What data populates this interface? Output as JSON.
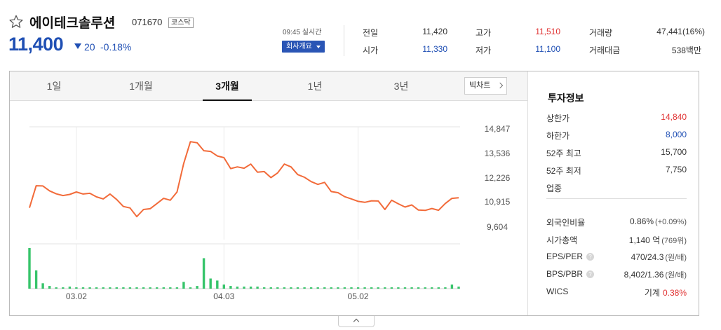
{
  "header": {
    "name": "에이테크솔루션",
    "code": "071670",
    "market": "코스닥",
    "price": "11,400",
    "change": "20",
    "change_pct": "-0.18%",
    "time": "09:45 실시간",
    "info_button": "회사개요"
  },
  "summary": {
    "prev_close": {
      "label": "전일",
      "value": "11,420"
    },
    "open": {
      "label": "시가",
      "value": "11,330"
    },
    "high": {
      "label": "고가",
      "value": "11,510"
    },
    "low": {
      "label": "저가",
      "value": "11,100"
    },
    "volume": {
      "label": "거래량",
      "value": "47,441(16%)"
    },
    "amount": {
      "label": "거래대금",
      "value": "538백만"
    }
  },
  "tabs": [
    "1일",
    "1개월",
    "3개월",
    "1년",
    "3년"
  ],
  "active_tab": "3개월",
  "big_chart": "빅차트",
  "chart_data": {
    "type": "line",
    "y_ticks": [
      "14,847",
      "13,536",
      "12,226",
      "10,915",
      "9,604"
    ],
    "x_ticks": [
      "03.02",
      "04.03",
      "05.02"
    ],
    "ylim": [
      9604,
      14847
    ],
    "series": [
      {
        "values": [
          10550,
          11720,
          11710,
          11450,
          11290,
          11200,
          11260,
          11390,
          11280,
          11320,
          11130,
          11020,
          11280,
          10990,
          10620,
          10540,
          10080,
          10460,
          10500,
          10770,
          11050,
          10950,
          11390,
          12900,
          14060,
          14000,
          13580,
          13540,
          13300,
          13210,
          12630,
          12720,
          12650,
          12870,
          12440,
          12470,
          12150,
          12400,
          12870,
          12720,
          12310,
          12170,
          11940,
          11790,
          11900,
          11410,
          11350,
          11140,
          11020,
          10890,
          10840,
          10920,
          10910,
          10460,
          10950,
          10760,
          10590,
          10700,
          10430,
          10410,
          10510,
          10420,
          10780,
          11050,
          11080
        ]
      }
    ],
    "volume": [
      60,
      27,
      8,
      4,
      2,
      2,
      3,
      2,
      2,
      2,
      2,
      2,
      2,
      2,
      2,
      2,
      2,
      2,
      2,
      2,
      2,
      2,
      2,
      10,
      2,
      4,
      45,
      15,
      12,
      6,
      4,
      3,
      3,
      3,
      3,
      2,
      2,
      2,
      2,
      2,
      2,
      2,
      2,
      2,
      2,
      2,
      2,
      2,
      2,
      2,
      2,
      2,
      2,
      2,
      2,
      2,
      2,
      2,
      2,
      2,
      2,
      2,
      2,
      6,
      3
    ]
  },
  "invest": {
    "title": "투자정보",
    "rows": [
      {
        "label": "상한가",
        "value": "14,840",
        "tone": "up"
      },
      {
        "label": "하한가",
        "value": "8,000",
        "tone": "down"
      },
      {
        "label": "52주 최고",
        "value": "15,700",
        "tone": "plain"
      },
      {
        "label": "52주 최저",
        "value": "7,750",
        "tone": "plain"
      },
      {
        "label": "업종",
        "value": "",
        "tone": "plain"
      }
    ],
    "rows2": [
      {
        "label": "외국인비율",
        "value": "0.86%",
        "extra": "(+0.09%)"
      },
      {
        "label": "시가총액",
        "value": "1,140 억",
        "extra": "(769위)"
      },
      {
        "label": "EPS/PER",
        "value": "470/24.3",
        "extra": "(원/배)",
        "help": "?"
      },
      {
        "label": "BPS/PBR",
        "value": "8,402/1.36",
        "extra": "(원/배)",
        "help": "?"
      },
      {
        "label": "WICS",
        "value": "기계",
        "extra": "0.38%"
      }
    ]
  },
  "colors": {
    "up": "#e03131",
    "down": "#1f4fb4",
    "line": "#f26b3a",
    "volume": "#36c46a"
  }
}
